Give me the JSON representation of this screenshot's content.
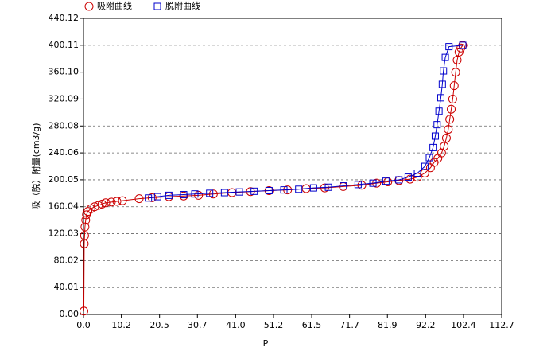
{
  "chart_data": {
    "type": "line",
    "x_label": "P",
    "y_label": "吸（脱）附量(cm3/g)",
    "xlim": [
      0,
      112.7
    ],
    "ylim": [
      0,
      440.12
    ],
    "xticks": [
      {
        "value": 0,
        "label": "0.0"
      },
      10.2,
      20.5,
      30.7,
      {
        "value": 41,
        "label": "41.0"
      },
      51.2,
      61.5,
      71.7,
      81.9,
      92.2,
      102.4,
      112.7
    ],
    "yticks": [
      {
        "value": 0,
        "label": "0.00"
      },
      40.01,
      80.02,
      120.03,
      160.04,
      200.05,
      240.06,
      280.08,
      320.09,
      {
        "value": 360.1,
        "label": "360.10"
      },
      400.11,
      440.12
    ],
    "grid": true,
    "legend": "top",
    "series": [
      {
        "name": "吸附曲线",
        "color": "#cc0000",
        "marker": "circle",
        "x": [
          0.1,
          0.2,
          0.3,
          0.4,
          0.6,
          0.8,
          1.2,
          2,
          3,
          4,
          5,
          6,
          7.5,
          9,
          10.5,
          15,
          18.5,
          23,
          27,
          31,
          35,
          40,
          45,
          50,
          55,
          60,
          65,
          70,
          75,
          79,
          82,
          85,
          88,
          90,
          92,
          93.5,
          94.5,
          95.5,
          96.5,
          97.2,
          97.8,
          98.3,
          98.7,
          99.1,
          99.5,
          99.9,
          100.3,
          100.7,
          101.2,
          101.7,
          102.2
        ],
        "values": [
          5,
          105,
          117,
          130,
          140,
          148,
          153,
          157,
          160,
          162,
          164,
          166,
          167,
          168,
          169,
          172,
          173.5,
          175,
          176,
          177,
          179,
          181,
          182.5,
          184,
          185,
          187,
          188,
          190,
          192,
          195,
          197,
          199,
          201,
          204,
          210,
          218,
          226,
          232,
          240,
          250,
          262,
          275,
          290,
          305,
          320,
          340,
          360,
          378,
          390,
          396,
          400
        ]
      },
      {
        "name": "脱附曲线",
        "color": "#0000cc",
        "marker": "square",
        "x": [
          102.2,
          98.5,
          97.5,
          97,
          96.7,
          96.3,
          95.8,
          95.3,
          94.8,
          94.2,
          93.2,
          92,
          90,
          87.5,
          85,
          81.5,
          78,
          74,
          70,
          66,
          62,
          58,
          54,
          50,
          46,
          42,
          38,
          34,
          30,
          27,
          23,
          20,
          17.5
        ],
        "values": [
          400,
          398,
          382,
          362,
          342,
          322,
          302,
          282,
          265,
          248,
          233,
          220,
          210,
          204,
          200,
          198,
          195,
          193,
          191,
          189,
          188,
          186,
          185,
          184,
          183,
          182,
          181,
          180,
          179,
          178,
          177,
          175,
          173
        ]
      }
    ]
  }
}
